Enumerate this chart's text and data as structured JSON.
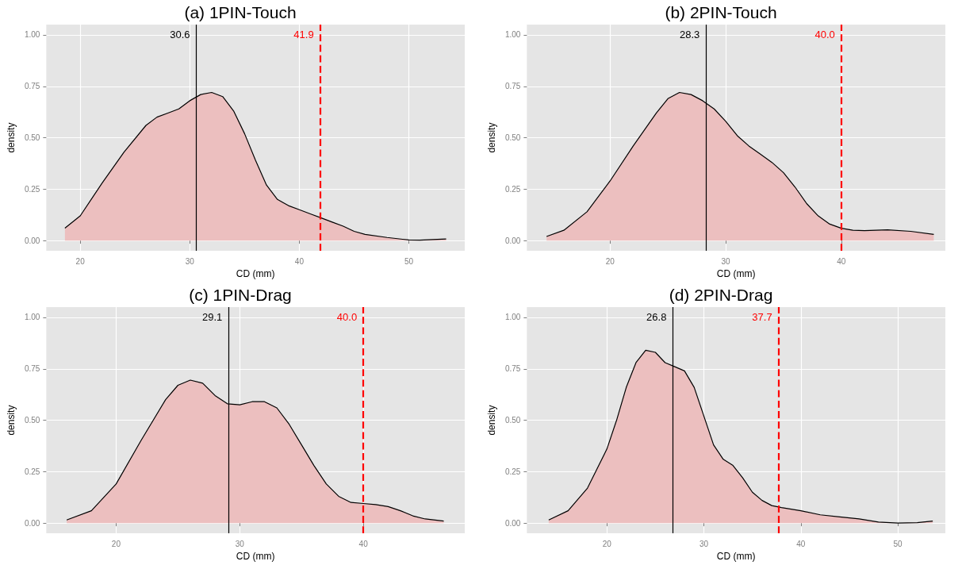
{
  "chart_data": [
    {
      "type": "area",
      "title": "(a) 1PIN-Touch",
      "xlabel": "CD (mm)",
      "ylabel": "density",
      "grid": true,
      "xlim": [
        16.9,
        55.1
      ],
      "xticks": [
        20,
        30,
        40,
        50
      ],
      "ylim": [
        -0.05,
        1.05
      ],
      "yticks": [
        {
          "value": 0,
          "label": "0.00"
        },
        {
          "value": 0.25,
          "label": "0.25"
        },
        {
          "value": 0.5,
          "label": "0.50"
        },
        {
          "value": 0.75,
          "label": "0.75"
        },
        {
          "value": 1,
          "label": "1.00"
        }
      ],
      "series": [
        {
          "color": "#ecbfbf",
          "x": [
            18.6,
            20,
            22,
            24,
            26,
            27,
            28,
            29,
            30,
            31,
            32,
            33,
            34,
            35,
            36,
            37,
            38,
            39,
            40,
            41,
            42,
            43,
            44,
            45,
            46,
            48,
            50,
            51,
            53.4
          ],
          "values": [
            0.06,
            0.12,
            0.28,
            0.43,
            0.56,
            0.6,
            0.62,
            0.64,
            0.68,
            0.71,
            0.72,
            0.7,
            0.63,
            0.52,
            0.39,
            0.27,
            0.2,
            0.17,
            0.15,
            0.13,
            0.11,
            0.09,
            0.07,
            0.045,
            0.03,
            0.015,
            0.003,
            0.002,
            0.008
          ]
        }
      ],
      "ref_lines": [
        {
          "axis": "x",
          "value": 30.6,
          "label": "30.6",
          "color": "#000000",
          "line_style": "solid"
        },
        {
          "axis": "x",
          "value": 41.9,
          "label": "41.9",
          "color": "#ff0000",
          "line_style": "dashed"
        }
      ]
    },
    {
      "type": "area",
      "title": "(b) 2PIN-Touch",
      "xlabel": "CD (mm)",
      "ylabel": "density",
      "grid": true,
      "xlim": [
        12.8,
        49.0
      ],
      "xticks": [
        20,
        30,
        40
      ],
      "ylim": [
        -0.05,
        1.05
      ],
      "yticks": [
        {
          "value": 0,
          "label": "0.00"
        },
        {
          "value": 0.25,
          "label": "0.25"
        },
        {
          "value": 0.5,
          "label": "0.50"
        },
        {
          "value": 0.75,
          "label": "0.75"
        },
        {
          "value": 1,
          "label": "1.00"
        }
      ],
      "series": [
        {
          "color": "#ecbfbf",
          "x": [
            14.5,
            16,
            18,
            20,
            22,
            24,
            25,
            26,
            27,
            28,
            29,
            30,
            31,
            32,
            33,
            34,
            35,
            36,
            37,
            38,
            39,
            40,
            41,
            42,
            44,
            46,
            48
          ],
          "values": [
            0.02,
            0.05,
            0.14,
            0.29,
            0.46,
            0.62,
            0.69,
            0.72,
            0.71,
            0.68,
            0.64,
            0.58,
            0.51,
            0.46,
            0.42,
            0.38,
            0.33,
            0.26,
            0.18,
            0.12,
            0.08,
            0.06,
            0.05,
            0.048,
            0.052,
            0.045,
            0.03
          ]
        }
      ],
      "ref_lines": [
        {
          "axis": "x",
          "value": 28.3,
          "label": "28.3",
          "color": "#000000",
          "line_style": "solid"
        },
        {
          "axis": "x",
          "value": 40.0,
          "label": "40.0",
          "color": "#ff0000",
          "line_style": "dashed"
        }
      ]
    },
    {
      "type": "area",
      "title": "(c) 1PIN-Drag",
      "xlabel": "CD (mm)",
      "ylabel": "density",
      "grid": true,
      "xlim": [
        14.35,
        48.2
      ],
      "xticks": [
        20,
        30,
        40
      ],
      "ylim": [
        -0.05,
        1.05
      ],
      "yticks": [
        {
          "value": 0,
          "label": "0.00"
        },
        {
          "value": 0.25,
          "label": "0.25"
        },
        {
          "value": 0.5,
          "label": "0.50"
        },
        {
          "value": 0.75,
          "label": "0.75"
        },
        {
          "value": 1,
          "label": "1.00"
        }
      ],
      "series": [
        {
          "color": "#ecbfbf",
          "x": [
            16,
            18,
            20,
            22,
            24,
            25,
            26,
            27,
            28,
            29,
            30,
            31,
            32,
            33,
            34,
            35,
            36,
            37,
            38,
            39,
            40,
            41,
            42,
            43,
            44,
            45,
            46.5
          ],
          "values": [
            0.015,
            0.06,
            0.19,
            0.4,
            0.6,
            0.67,
            0.695,
            0.68,
            0.62,
            0.58,
            0.575,
            0.59,
            0.59,
            0.56,
            0.48,
            0.38,
            0.28,
            0.19,
            0.13,
            0.1,
            0.095,
            0.09,
            0.08,
            0.06,
            0.035,
            0.02,
            0.01
          ]
        }
      ],
      "ref_lines": [
        {
          "axis": "x",
          "value": 29.1,
          "label": "29.1",
          "color": "#000000",
          "line_style": "solid"
        },
        {
          "axis": "x",
          "value": 40.0,
          "label": "40.0",
          "color": "#ff0000",
          "line_style": "dashed"
        }
      ]
    },
    {
      "type": "area",
      "title": "(d) 2PIN-Drag",
      "xlabel": "CD (mm)",
      "ylabel": "density",
      "grid": true,
      "xlim": [
        11.75,
        54.9
      ],
      "xticks": [
        20,
        30,
        40,
        50
      ],
      "ylim": [
        -0.05,
        1.05
      ],
      "yticks": [
        {
          "value": 0,
          "label": "0.00"
        },
        {
          "value": 0.25,
          "label": "0.25"
        },
        {
          "value": 0.5,
          "label": "0.50"
        },
        {
          "value": 0.75,
          "label": "0.75"
        },
        {
          "value": 1,
          "label": "1.00"
        }
      ],
      "series": [
        {
          "color": "#ecbfbf",
          "x": [
            14,
            16,
            18,
            20,
            21,
            22,
            23,
            24,
            25,
            26,
            27,
            28,
            29,
            30,
            31,
            32,
            33,
            34,
            35,
            36,
            37,
            38,
            40,
            42,
            44,
            46,
            48,
            50,
            52,
            53.6
          ],
          "values": [
            0.015,
            0.06,
            0.17,
            0.36,
            0.5,
            0.66,
            0.78,
            0.84,
            0.83,
            0.78,
            0.76,
            0.74,
            0.66,
            0.52,
            0.38,
            0.31,
            0.28,
            0.22,
            0.15,
            0.11,
            0.085,
            0.075,
            0.06,
            0.04,
            0.03,
            0.02,
            0.005,
            0,
            0.002,
            0.01
          ]
        }
      ],
      "ref_lines": [
        {
          "axis": "x",
          "value": 26.8,
          "label": "26.8",
          "color": "#000000",
          "line_style": "solid"
        },
        {
          "axis": "x",
          "value": 37.7,
          "label": "37.7",
          "color": "#ff0000",
          "line_style": "dashed"
        }
      ]
    }
  ]
}
